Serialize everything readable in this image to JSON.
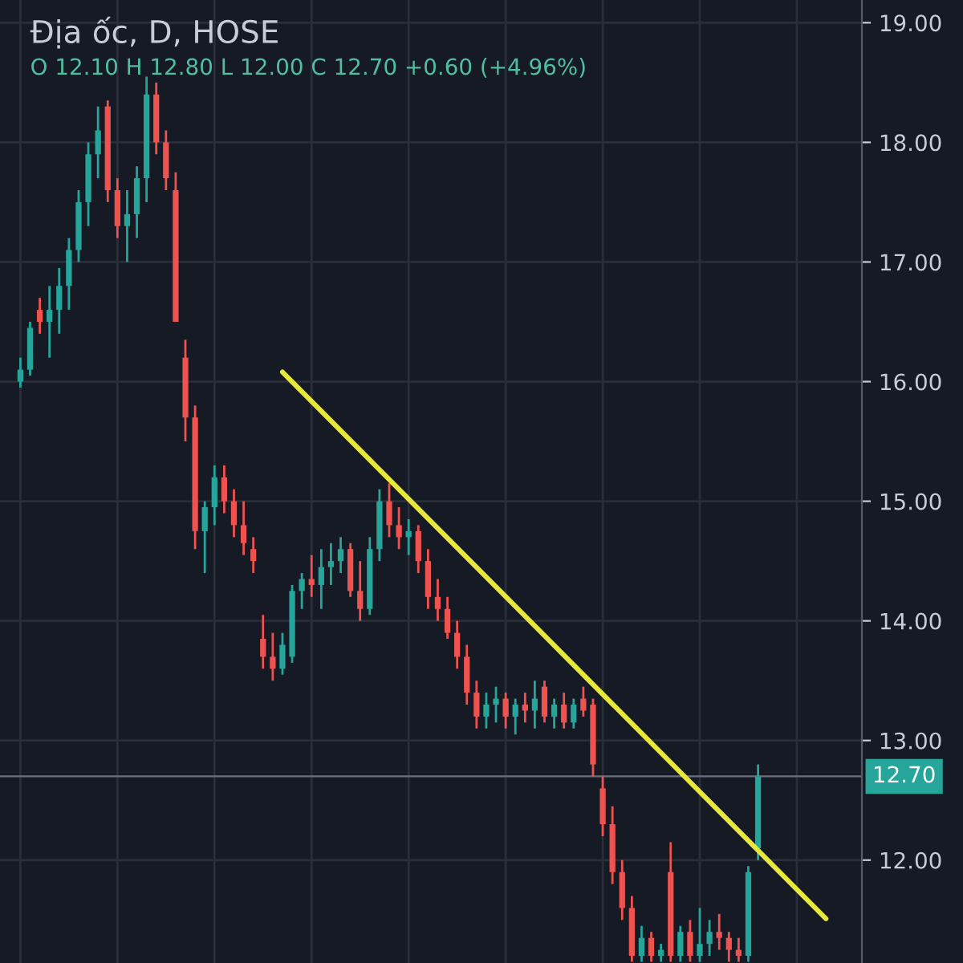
{
  "chart_data": {
    "type": "candlestick",
    "title": "Địa ốc, D, HOSE",
    "subtitle": "O 12.10 H 12.80 L 12.00 C 12.70 +0.60 (+4.96%)",
    "categories": [
      null,
      null,
      null,
      null,
      null,
      null,
      null,
      null,
      null,
      null,
      null,
      null,
      null,
      null,
      null,
      null,
      null,
      null,
      null,
      null,
      null,
      null,
      null,
      null,
      null,
      null,
      null,
      null,
      null,
      null,
      null,
      null,
      null,
      null,
      null,
      null,
      null,
      null,
      null,
      null,
      null,
      null,
      null,
      null,
      null,
      null,
      null,
      null,
      null,
      null,
      null,
      null,
      null,
      null,
      null,
      null,
      null,
      null,
      null,
      null,
      null,
      null,
      null,
      null,
      null,
      null,
      null,
      null,
      null,
      null,
      null,
      null,
      null,
      null,
      null,
      null,
      null,
      null,
      null,
      null,
      null,
      null,
      null,
      null
    ],
    "ohlc": [
      [
        16.0,
        16.2,
        15.95,
        16.1
      ],
      [
        16.1,
        16.5,
        16.05,
        16.45
      ],
      [
        16.6,
        16.7,
        16.4,
        16.5
      ],
      [
        16.5,
        16.8,
        16.2,
        16.6
      ],
      [
        16.6,
        16.95,
        16.4,
        16.8
      ],
      [
        16.8,
        17.2,
        16.6,
        17.1
      ],
      [
        17.1,
        17.6,
        17.0,
        17.5
      ],
      [
        17.5,
        18.0,
        17.3,
        17.9
      ],
      [
        17.9,
        18.3,
        17.7,
        18.1
      ],
      [
        18.3,
        18.35,
        17.5,
        17.6
      ],
      [
        17.6,
        17.7,
        17.2,
        17.3
      ],
      [
        17.3,
        17.6,
        17.0,
        17.4
      ],
      [
        17.4,
        17.8,
        17.2,
        17.7
      ],
      [
        17.7,
        18.55,
        17.5,
        18.4
      ],
      [
        18.4,
        18.5,
        17.9,
        18.0
      ],
      [
        18.0,
        18.1,
        17.6,
        17.7
      ],
      [
        17.6,
        17.75,
        16.5,
        16.5
      ],
      [
        16.2,
        16.35,
        15.5,
        15.7
      ],
      [
        15.7,
        15.8,
        14.6,
        14.75
      ],
      [
        14.75,
        15.0,
        14.4,
        14.95
      ],
      [
        14.95,
        15.3,
        14.8,
        15.2
      ],
      [
        15.2,
        15.3,
        14.9,
        15.0
      ],
      [
        15.0,
        15.1,
        14.7,
        14.8
      ],
      [
        14.8,
        15.0,
        14.55,
        14.65
      ],
      [
        14.6,
        14.7,
        14.4,
        14.5
      ],
      [
        13.85,
        14.05,
        13.6,
        13.7
      ],
      [
        13.7,
        13.9,
        13.5,
        13.6
      ],
      [
        13.6,
        13.9,
        13.55,
        13.8
      ],
      [
        13.7,
        14.3,
        13.65,
        14.25
      ],
      [
        14.25,
        14.4,
        14.1,
        14.35
      ],
      [
        14.35,
        14.55,
        14.2,
        14.3
      ],
      [
        14.3,
        14.6,
        14.1,
        14.45
      ],
      [
        14.45,
        14.65,
        14.3,
        14.5
      ],
      [
        14.5,
        14.7,
        14.4,
        14.6
      ],
      [
        14.6,
        14.65,
        14.2,
        14.25
      ],
      [
        14.25,
        14.5,
        14.0,
        14.1
      ],
      [
        14.1,
        14.7,
        14.05,
        14.6
      ],
      [
        14.6,
        15.1,
        14.5,
        15.0
      ],
      [
        15.0,
        15.15,
        14.7,
        14.8
      ],
      [
        14.8,
        14.95,
        14.6,
        14.7
      ],
      [
        14.7,
        14.85,
        14.55,
        14.75
      ],
      [
        14.75,
        14.8,
        14.4,
        14.5
      ],
      [
        14.5,
        14.6,
        14.1,
        14.2
      ],
      [
        14.2,
        14.35,
        14.0,
        14.1
      ],
      [
        14.1,
        14.2,
        13.85,
        13.9
      ],
      [
        13.9,
        14.0,
        13.6,
        13.7
      ],
      [
        13.7,
        13.8,
        13.3,
        13.4
      ],
      [
        13.4,
        13.5,
        13.1,
        13.2
      ],
      [
        13.2,
        13.4,
        13.1,
        13.3
      ],
      [
        13.3,
        13.45,
        13.15,
        13.35
      ],
      [
        13.35,
        13.4,
        13.1,
        13.2
      ],
      [
        13.2,
        13.35,
        13.05,
        13.3
      ],
      [
        13.3,
        13.4,
        13.15,
        13.25
      ],
      [
        13.25,
        13.5,
        13.1,
        13.35
      ],
      [
        13.45,
        13.5,
        13.15,
        13.2
      ],
      [
        13.2,
        13.35,
        13.1,
        13.3
      ],
      [
        13.3,
        13.4,
        13.1,
        13.15
      ],
      [
        13.15,
        13.35,
        13.1,
        13.3
      ],
      [
        13.35,
        13.45,
        13.2,
        13.25
      ],
      [
        13.3,
        13.35,
        12.7,
        12.8
      ],
      [
        12.6,
        12.7,
        12.2,
        12.3
      ],
      [
        12.3,
        12.45,
        11.8,
        11.9
      ],
      [
        11.9,
        12.0,
        11.5,
        11.6
      ],
      [
        11.6,
        11.7,
        11.15,
        11.2
      ],
      [
        11.2,
        11.45,
        11.15,
        11.35
      ],
      [
        11.35,
        11.4,
        11.15,
        11.2
      ],
      [
        11.2,
        11.3,
        11.15,
        11.25
      ],
      [
        11.9,
        12.15,
        11.15,
        11.2
      ],
      [
        11.2,
        11.45,
        11.15,
        11.4
      ],
      [
        11.4,
        11.5,
        11.15,
        11.2
      ],
      [
        11.2,
        11.6,
        11.15,
        11.3
      ],
      [
        11.3,
        11.5,
        11.2,
        11.4
      ],
      [
        11.4,
        11.55,
        11.25,
        11.35
      ],
      [
        11.35,
        11.4,
        11.15,
        11.25
      ],
      [
        11.25,
        11.35,
        11.15,
        11.2
      ],
      [
        11.2,
        11.95,
        11.15,
        11.9
      ],
      [
        12.1,
        12.8,
        12.0,
        12.7
      ],
      null,
      null,
      null,
      null,
      null,
      null,
      null
    ],
    "colors": [
      "#26a69a",
      "#26a69a",
      "#ef5350",
      "#26a69a",
      "#26a69a",
      "#26a69a",
      "#26a69a",
      "#26a69a",
      "#26a69a",
      "#ef5350",
      "#ef5350",
      "#26a69a",
      "#26a69a",
      "#26a69a",
      "#ef5350",
      "#ef5350",
      "#ef5350",
      "#ef5350",
      "#ef5350",
      "#26a69a",
      "#26a69a",
      "#ef5350",
      "#ef5350",
      "#ef5350",
      "#ef5350",
      "#ef5350",
      "#ef5350",
      "#26a69a",
      "#26a69a",
      "#26a69a",
      "#ef5350",
      "#26a69a",
      "#26a69a",
      "#26a69a",
      "#ef5350",
      "#ef5350",
      "#26a69a",
      "#26a69a",
      "#ef5350",
      "#ef5350",
      "#26a69a",
      "#ef5350",
      "#ef5350",
      "#ef5350",
      "#ef5350",
      "#ef5350",
      "#ef5350",
      "#ef5350",
      "#26a69a",
      "#26a69a",
      "#ef5350",
      "#26a69a",
      "#ef5350",
      "#26a69a",
      "#ef5350",
      "#26a69a",
      "#ef5350",
      "#26a69a",
      "#ef5350",
      "#ef5350",
      "#ef5350",
      "#ef5350",
      "#ef5350",
      "#ef5350",
      "#26a69a",
      "#ef5350",
      "#26a69a",
      "#ef5350",
      "#26a69a",
      "#ef5350",
      "#26a69a",
      "#26a69a",
      "#ef5350",
      "#ef5350",
      "#ef5350",
      "#26a69a",
      "#26a69a",
      null,
      null,
      null,
      null,
      null,
      null,
      null
    ],
    "series": [
      {
        "type": "line",
        "values": [
          null,
          null,
          null,
          null,
          null,
          null,
          null,
          null,
          null,
          null,
          null,
          null,
          null,
          null,
          null,
          null,
          null,
          null,
          null,
          null,
          null,
          null,
          null,
          null,
          null,
          null,
          null,
          16.08,
          null,
          null,
          null,
          null,
          null,
          null,
          null,
          null,
          null,
          null,
          null,
          null,
          null,
          null,
          null,
          null,
          null,
          null,
          null,
          null,
          null,
          null,
          null,
          null,
          null,
          null,
          null,
          null,
          null,
          null,
          null,
          null,
          null,
          null,
          null,
          null,
          null,
          null,
          null,
          null,
          null,
          null,
          null,
          null,
          null,
          null,
          null,
          null,
          null,
          null,
          null,
          null,
          null,
          null,
          null,
          11.51
        ],
        "color": "#e8e83a"
      }
    ],
    "ref_lines": [
      {
        "axis": "y",
        "value": 12.7,
        "label": "12.70",
        "color": "#6b7080"
      }
    ],
    "ylim": [
      11.14,
      19.19
    ],
    "yticks": [
      {
        "value": 12,
        "label": "12.00"
      },
      {
        "value": 13,
        "label": "13.00"
      },
      {
        "value": 14,
        "label": "14.00"
      },
      {
        "value": 15,
        "label": "15.00"
      },
      {
        "value": 16,
        "label": "16.00"
      },
      {
        "value": 17,
        "label": "17.00"
      },
      {
        "value": 18,
        "label": "18.00"
      },
      {
        "value": 19,
        "label": "19.00"
      }
    ],
    "tick_labels": "y",
    "grid": true
  }
}
